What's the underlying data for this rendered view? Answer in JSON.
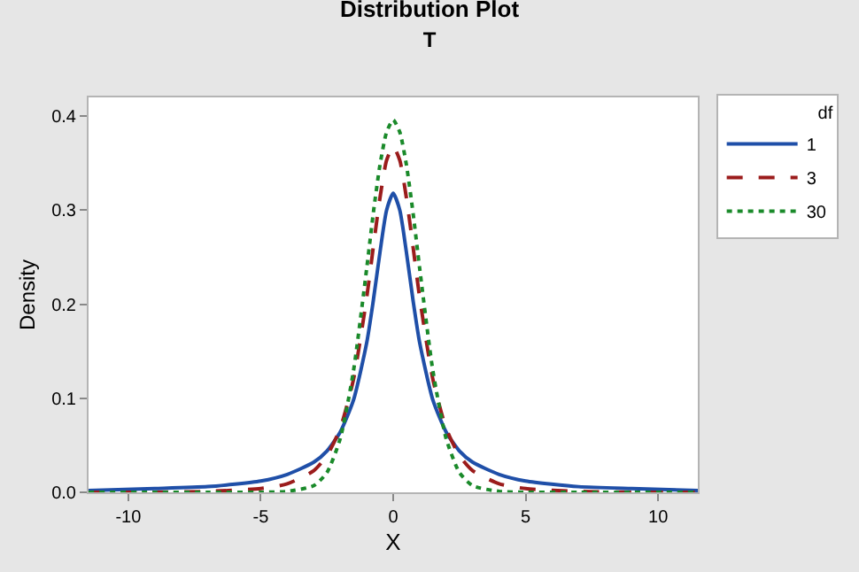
{
  "chart_data": {
    "type": "line",
    "title": "Distribution Plot",
    "subtitle": "T",
    "xlabel": "X",
    "ylabel": "Density",
    "legend_title": "df",
    "x": [
      -11.5,
      -9,
      -7,
      -5,
      -4,
      -3,
      -2.5,
      -2,
      -1.5,
      -1,
      -0.75,
      -0.5,
      -0.25,
      0,
      0.25,
      0.5,
      0.75,
      1,
      1.5,
      2,
      2.5,
      3,
      4,
      5,
      7,
      9,
      11.5
    ],
    "series": [
      {
        "name": "1",
        "color": "#1f4fa8",
        "line_style": "solid",
        "values": [
          0.002,
          0.004,
          0.006,
          0.012,
          0.019,
          0.032,
          0.044,
          0.064,
          0.098,
          0.159,
          0.204,
          0.255,
          0.3,
          0.318,
          0.3,
          0.255,
          0.204,
          0.159,
          0.098,
          0.064,
          0.044,
          0.032,
          0.019,
          0.012,
          0.006,
          0.004,
          0.002
        ]
      },
      {
        "name": "3",
        "color": "#9b1c1c",
        "line_style": "dashed",
        "values": [
          0.0,
          0.0,
          0.001,
          0.004,
          0.009,
          0.023,
          0.039,
          0.068,
          0.12,
          0.207,
          0.261,
          0.313,
          0.353,
          0.368,
          0.353,
          0.313,
          0.261,
          0.207,
          0.12,
          0.068,
          0.039,
          0.023,
          0.009,
          0.004,
          0.001,
          0.0,
          0.0
        ]
      },
      {
        "name": "30",
        "color": "#1a8a2a",
        "line_style": "dotted",
        "values": [
          0.0,
          0.0,
          0.0,
          0.0,
          0.001,
          0.007,
          0.021,
          0.057,
          0.129,
          0.238,
          0.297,
          0.348,
          0.383,
          0.396,
          0.383,
          0.348,
          0.297,
          0.238,
          0.129,
          0.057,
          0.021,
          0.007,
          0.001,
          0.0,
          0.0,
          0.0,
          0.0
        ]
      }
    ],
    "xlim": [
      -11.5,
      11.5
    ],
    "xticks": [
      -10,
      -5,
      0,
      5,
      10
    ],
    "ylim": [
      0,
      0.42
    ],
    "yticks": [
      {
        "value": 0,
        "label": "0.0"
      },
      0.1,
      0.2,
      0.3,
      0.4
    ],
    "grid": false,
    "legend": "top right",
    "marker": "none"
  }
}
